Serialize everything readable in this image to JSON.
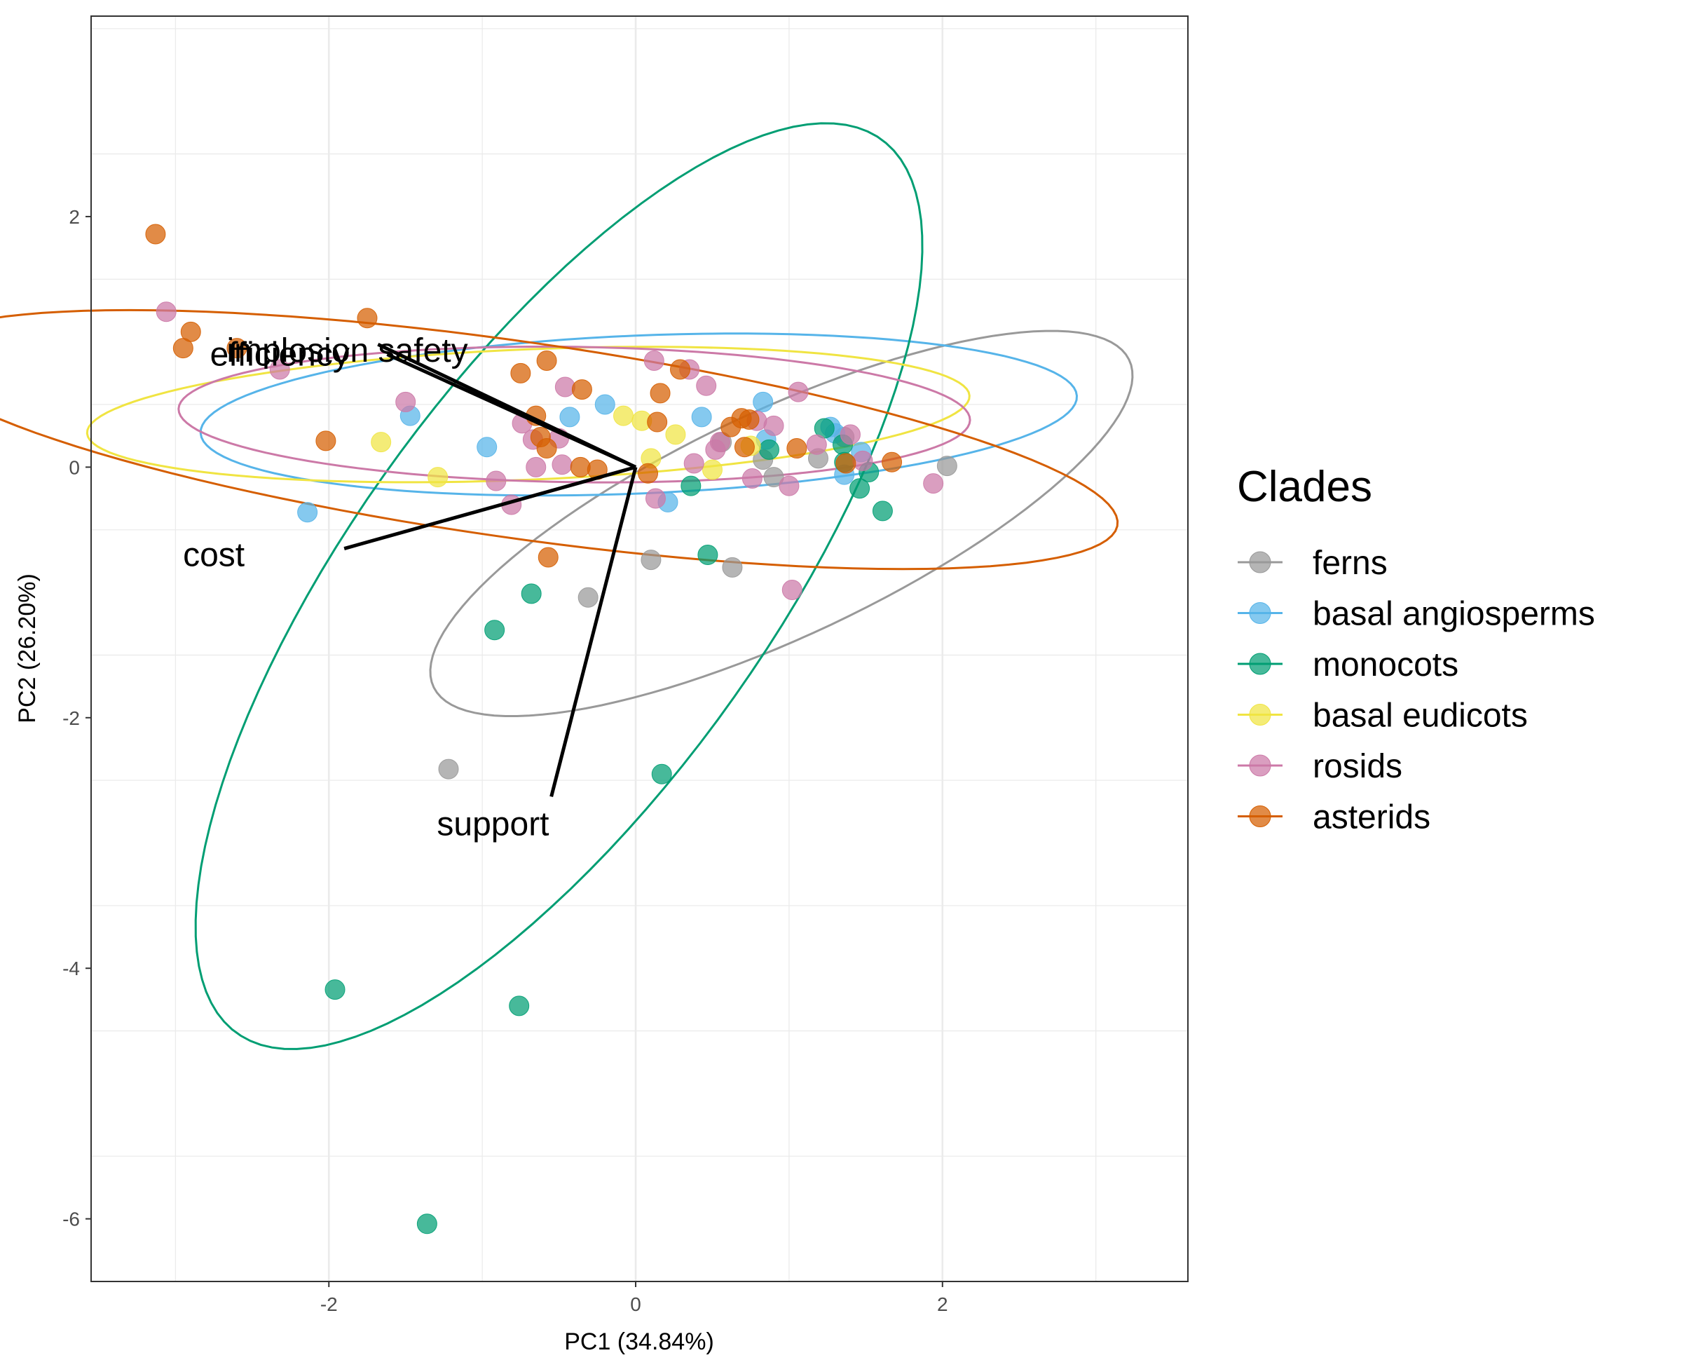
{
  "chart_data": {
    "type": "scatter",
    "xlabel": "PC1 (34.84%)",
    "ylabel": "PC2 (26.20%)",
    "xlim": [
      -3.55,
      3.6
    ],
    "ylim": [
      -6.5,
      3.6
    ],
    "x_ticks": [
      {
        "value": -2,
        "label": "-2"
      },
      {
        "value": 0,
        "label": "0"
      },
      {
        "value": 2,
        "label": "2"
      }
    ],
    "y_ticks": [
      {
        "value": 2,
        "label": "2"
      },
      {
        "value": 0,
        "label": "0"
      },
      {
        "value": -2,
        "label": "-2"
      },
      {
        "value": -4,
        "label": "-4"
      },
      {
        "value": -6,
        "label": "-6"
      }
    ],
    "grid": true,
    "legend": {
      "title": "Clades",
      "position": "right"
    },
    "series": [
      {
        "name": "ferns",
        "color": "#999999",
        "points": [
          [
            -1.22,
            -2.41
          ],
          [
            -0.31,
            -1.04
          ],
          [
            0.1,
            -0.74
          ],
          [
            0.63,
            -0.8
          ],
          [
            0.83,
            0.06
          ],
          [
            0.9,
            -0.08
          ],
          [
            1.19,
            0.07
          ],
          [
            1.36,
            0.24
          ],
          [
            2.03,
            0.01
          ],
          [
            0.56,
            0.2
          ]
        ],
        "ellipse": {
          "cx": 0.95,
          "cy": -0.45,
          "rx": 2.62,
          "ry": 0.86,
          "angle_deg": 31
        }
      },
      {
        "name": "basal angiosperms",
        "color": "#56B4E9",
        "points": [
          [
            -2.14,
            -0.36
          ],
          [
            -1.47,
            0.41
          ],
          [
            -0.97,
            0.16
          ],
          [
            -0.43,
            0.4
          ],
          [
            -0.2,
            0.5
          ],
          [
            0.21,
            -0.28
          ],
          [
            0.43,
            0.4
          ],
          [
            0.83,
            0.52
          ],
          [
            0.85,
            0.22
          ],
          [
            1.27,
            0.32
          ],
          [
            1.36,
            -0.06
          ],
          [
            1.47,
            0.12
          ],
          [
            1.3,
            0.27
          ]
        ],
        "ellipse": {
          "cx": 0.02,
          "cy": 0.42,
          "rx": 2.86,
          "ry": 0.63,
          "angle_deg": 3
        }
      },
      {
        "name": "monocots",
        "color": "#009E73",
        "points": [
          [
            -1.96,
            -4.17
          ],
          [
            -1.36,
            -6.04
          ],
          [
            -0.76,
            -4.3
          ],
          [
            -0.92,
            -1.3
          ],
          [
            -0.68,
            -1.01
          ],
          [
            0.17,
            -2.45
          ],
          [
            0.36,
            -0.15
          ],
          [
            0.47,
            -0.7
          ],
          [
            0.87,
            0.14
          ],
          [
            1.23,
            0.31
          ],
          [
            1.35,
            0.18
          ],
          [
            1.46,
            -0.17
          ],
          [
            1.52,
            -0.04
          ],
          [
            1.61,
            -0.35
          ],
          [
            1.36,
            0.04
          ]
        ],
        "ellipse": {
          "cx": -0.5,
          "cy": -0.95,
          "rx": 4.15,
          "ry": 1.43,
          "angle_deg": 61
        }
      },
      {
        "name": "basal eudicots",
        "color": "#F0E442",
        "points": [
          [
            -1.66,
            0.2
          ],
          [
            -1.29,
            -0.08
          ],
          [
            -0.08,
            0.41
          ],
          [
            0.04,
            0.37
          ],
          [
            0.1,
            0.07
          ],
          [
            0.26,
            0.26
          ],
          [
            0.5,
            -0.02
          ],
          [
            0.75,
            0.17
          ]
        ],
        "ellipse": {
          "cx": -0.7,
          "cy": 0.42,
          "rx": 2.88,
          "ry": 0.52,
          "angle_deg": 3
        }
      },
      {
        "name": "rosids",
        "color": "#CC79A7",
        "points": [
          [
            -3.06,
            1.24
          ],
          [
            -2.32,
            0.78
          ],
          [
            -1.5,
            0.52
          ],
          [
            -0.91,
            -0.11
          ],
          [
            -0.81,
            -0.3
          ],
          [
            -0.74,
            0.35
          ],
          [
            -0.67,
            0.22
          ],
          [
            -0.65,
            0.0
          ],
          [
            -0.5,
            0.23
          ],
          [
            -0.48,
            0.02
          ],
          [
            -0.46,
            0.64
          ],
          [
            0.12,
            0.85
          ],
          [
            0.13,
            -0.25
          ],
          [
            0.35,
            0.78
          ],
          [
            0.38,
            0.03
          ],
          [
            0.46,
            0.65
          ],
          [
            0.52,
            0.14
          ],
          [
            0.55,
            0.2
          ],
          [
            0.76,
            -0.09
          ],
          [
            0.79,
            0.37
          ],
          [
            0.9,
            0.33
          ],
          [
            1.0,
            -0.15
          ],
          [
            1.02,
            -0.98
          ],
          [
            1.06,
            0.6
          ],
          [
            1.18,
            0.18
          ],
          [
            1.48,
            0.05
          ],
          [
            1.94,
            -0.13
          ],
          [
            1.4,
            0.26
          ]
        ],
        "ellipse": {
          "cx": -0.4,
          "cy": 0.42,
          "rx": 2.58,
          "ry": 0.54,
          "angle_deg": -1
        }
      },
      {
        "name": "asterids",
        "color": "#D55E00",
        "points": [
          [
            -3.13,
            1.86
          ],
          [
            -2.95,
            0.95
          ],
          [
            -2.9,
            1.08
          ],
          [
            -2.6,
            0.95
          ],
          [
            -2.02,
            0.21
          ],
          [
            -1.75,
            1.19
          ],
          [
            -0.75,
            0.75
          ],
          [
            -0.65,
            0.41
          ],
          [
            -0.62,
            0.24
          ],
          [
            -0.57,
            -0.72
          ],
          [
            -0.58,
            0.85
          ],
          [
            -0.58,
            0.15
          ],
          [
            -0.35,
            0.62
          ],
          [
            -0.36,
            0.0
          ],
          [
            -0.25,
            -0.02
          ],
          [
            0.08,
            -0.05
          ],
          [
            0.14,
            0.36
          ],
          [
            0.16,
            0.59
          ],
          [
            0.29,
            0.78
          ],
          [
            0.62,
            0.32
          ],
          [
            0.69,
            0.39
          ],
          [
            0.74,
            0.38
          ],
          [
            0.71,
            0.16
          ],
          [
            1.05,
            0.15
          ],
          [
            1.67,
            0.04
          ],
          [
            1.37,
            0.03
          ]
        ],
        "ellipse": {
          "cx": -0.78,
          "cy": 0.22,
          "rx": 3.98,
          "ry": 0.78,
          "angle_deg": -10
        }
      }
    ],
    "loadings": [
      {
        "label": "implosion safety",
        "x": -1.68,
        "y": 0.98
      },
      {
        "label": "efficiency",
        "x": -1.62,
        "y": 0.9
      },
      {
        "label": "cost",
        "x": -1.9,
        "y": -0.65
      },
      {
        "label": "support",
        "x": -0.55,
        "y": -2.63
      }
    ]
  }
}
